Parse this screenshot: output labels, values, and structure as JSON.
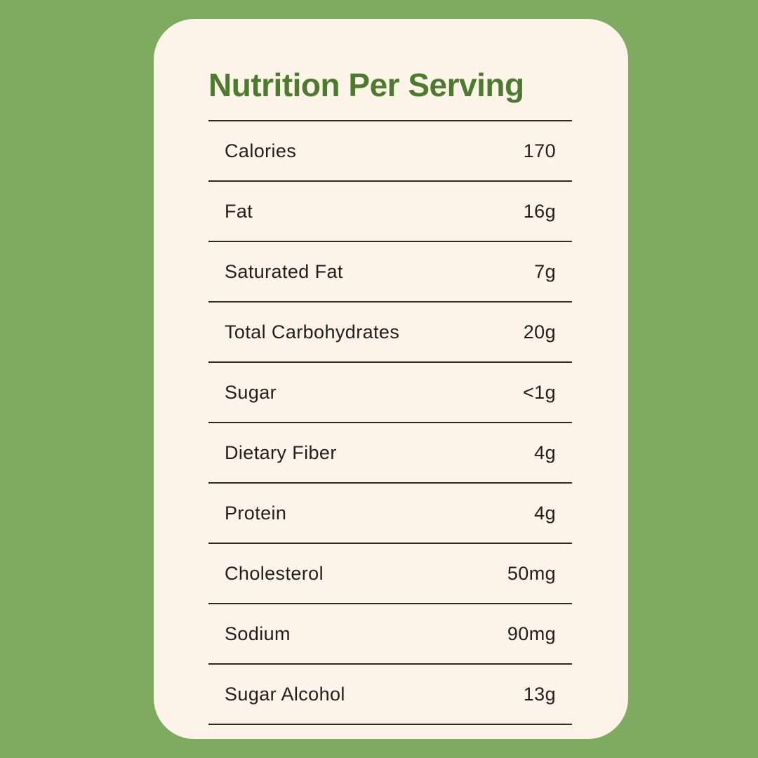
{
  "card": {
    "title": "Nutrition Per Serving",
    "rows": [
      {
        "label": "Calories",
        "value": "170"
      },
      {
        "label": "Fat",
        "value": "16g"
      },
      {
        "label": "Saturated Fat",
        "value": "7g"
      },
      {
        "label": "Total Carbohydrates",
        "value": "20g"
      },
      {
        "label": "Sugar",
        "value": "<1g"
      },
      {
        "label": "Dietary Fiber",
        "value": "4g"
      },
      {
        "label": "Protein",
        "value": "4g"
      },
      {
        "label": "Cholesterol",
        "value": "50mg"
      },
      {
        "label": "Sodium",
        "value": "90mg"
      },
      {
        "label": "Sugar Alcohol",
        "value": "13g"
      }
    ]
  },
  "colors": {
    "background": "#7fab60",
    "card_background": "#fdf3e8",
    "title_text": "#4b7b2d",
    "body_text": "#211e1c",
    "divider": "#2e2a25"
  }
}
